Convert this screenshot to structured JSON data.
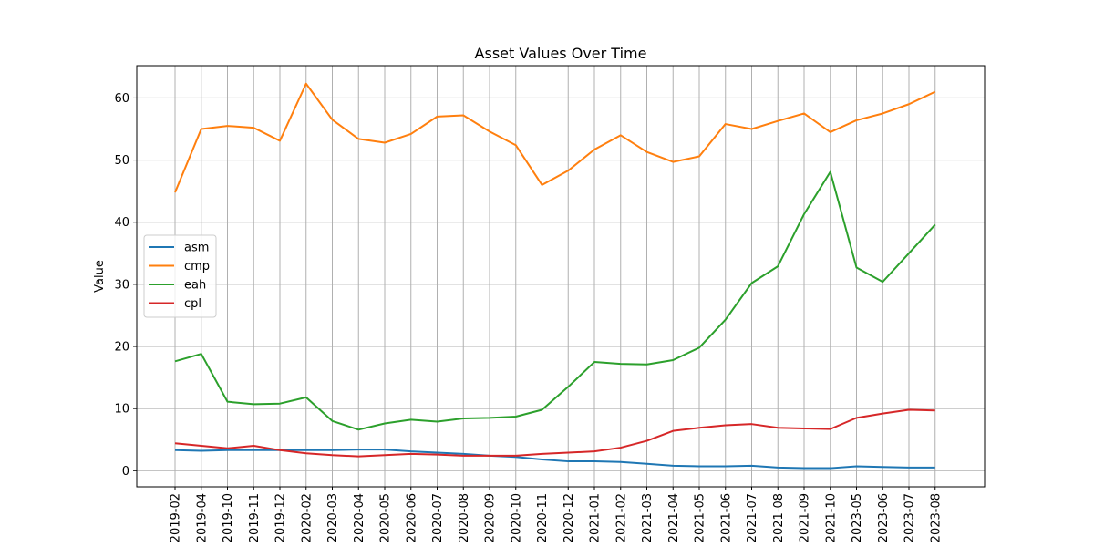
{
  "chart_data": {
    "type": "line",
    "title": "Asset Values Over Time",
    "xlabel": "",
    "ylabel": "Value",
    "ylim": [
      -2.6,
      65.2
    ],
    "yticks": [
      0,
      10,
      20,
      30,
      40,
      50,
      60
    ],
    "grid": true,
    "legend_position": "center-left",
    "categories": [
      "2019-02",
      "2019-04",
      "2019-10",
      "2019-11",
      "2019-12",
      "2020-02",
      "2020-03",
      "2020-04",
      "2020-05",
      "2020-06",
      "2020-07",
      "2020-08",
      "2020-09",
      "2020-10",
      "2020-11",
      "2020-12",
      "2021-01",
      "2021-02",
      "2021-03",
      "2021-04",
      "2021-05",
      "2021-06",
      "2021-07",
      "2021-08",
      "2021-09",
      "2021-10",
      "2023-05",
      "2023-06",
      "2023-07",
      "2023-08"
    ],
    "series": [
      {
        "name": "asm",
        "color": "#1f77b4",
        "values": [
          3.3,
          3.2,
          3.3,
          3.3,
          3.3,
          3.3,
          3.3,
          3.4,
          3.4,
          3.1,
          2.9,
          2.7,
          2.4,
          2.2,
          1.8,
          1.5,
          1.5,
          1.4,
          1.1,
          0.8,
          0.7,
          0.7,
          0.8,
          0.5,
          0.4,
          0.4,
          0.7,
          0.6,
          0.5,
          0.5
        ]
      },
      {
        "name": "cmp",
        "color": "#ff7f0e",
        "values": [
          44.8,
          55.0,
          55.5,
          55.2,
          53.1,
          62.3,
          56.5,
          53.4,
          52.8,
          54.2,
          57.0,
          57.2,
          54.6,
          52.4,
          46.0,
          48.3,
          51.7,
          54.0,
          51.3,
          49.7,
          50.6,
          55.8,
          55.0,
          56.3,
          57.5,
          54.5,
          56.4,
          57.5,
          59.0,
          61.0
        ]
      },
      {
        "name": "eah",
        "color": "#2ca02c",
        "values": [
          17.6,
          18.8,
          11.1,
          10.7,
          10.8,
          11.8,
          8.0,
          6.6,
          7.6,
          8.2,
          7.9,
          8.4,
          8.5,
          8.7,
          9.8,
          13.5,
          17.5,
          17.2,
          17.1,
          17.8,
          19.8,
          24.3,
          30.2,
          32.9,
          41.3,
          48.1,
          32.7,
          30.4,
          35.0,
          39.6
        ]
      },
      {
        "name": "cpl",
        "color": "#d62728",
        "values": [
          4.4,
          4.0,
          3.6,
          4.0,
          3.3,
          2.8,
          2.5,
          2.3,
          2.5,
          2.7,
          2.6,
          2.4,
          2.4,
          2.4,
          2.7,
          2.9,
          3.1,
          3.7,
          4.8,
          6.4,
          6.9,
          7.3,
          7.5,
          6.9,
          6.8,
          6.7,
          8.5,
          9.2,
          9.8,
          9.7
        ]
      }
    ]
  }
}
